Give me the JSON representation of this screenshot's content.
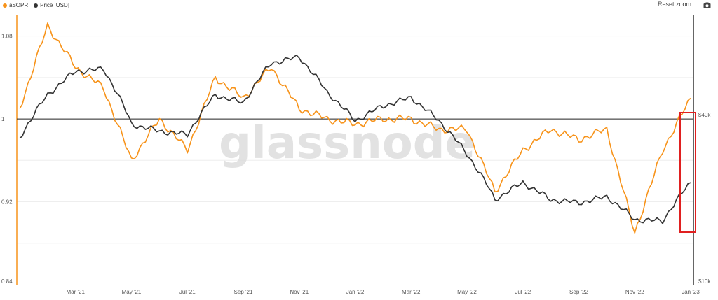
{
  "legend": [
    {
      "label": "aSOPR",
      "color": "#f7931a"
    },
    {
      "label": "Price [USD]",
      "color": "#333333"
    }
  ],
  "toolbar": {
    "reset_label": "Reset zoom",
    "camera_icon": "camera-icon"
  },
  "watermark": "glassnode",
  "chart_data": {
    "type": "line",
    "title": "",
    "xlabel": "",
    "x_ticks": [
      "Mar '21",
      "May '21",
      "Jul '21",
      "Sep '21",
      "Nov '21",
      "Jan '22",
      "Mar '22",
      "May '22",
      "Jul '22",
      "Sep '22",
      "Nov '22",
      "Jan '23"
    ],
    "x": [
      "Jan '21",
      "Feb '21",
      "Mar '21",
      "Apr '21",
      "May '21",
      "Jun '21",
      "Jul '21",
      "Aug '21",
      "Sep '21",
      "Oct '21",
      "Nov '21",
      "Dec '21",
      "Jan '22",
      "Feb '22",
      "Mar '22",
      "Apr '22",
      "May '22",
      "Jun '22",
      "Jul '22",
      "Aug '22",
      "Sep '22",
      "Oct '22",
      "Nov '22",
      "Dec '22",
      "Jan '23"
    ],
    "left_axis": {
      "ticks": [
        "1.08",
        "1",
        "0.92",
        "0.84"
      ],
      "ylim": [
        0.84,
        1.1
      ]
    },
    "right_axis": {
      "ticks": [
        "$40k",
        "$10k"
      ],
      "scale": "log"
    },
    "reference_line": {
      "axis": "left",
      "value": 1
    },
    "series": [
      {
        "name": "aSOPR",
        "axis": "left",
        "color": "#f7931a",
        "values": [
          1.01,
          1.09,
          1.05,
          1.03,
          0.96,
          1.0,
          0.97,
          1.04,
          1.02,
          1.05,
          1.01,
          1.0,
          0.995,
          1.0,
          1.0,
          0.99,
          0.99,
          0.93,
          0.97,
          0.99,
          0.98,
          0.99,
          0.89,
          0.97,
          1.02
        ]
      },
      {
        "name": "Price [USD]",
        "axis": "right",
        "color": "#333333",
        "values": [
          33000,
          47000,
          57000,
          58000,
          37000,
          35000,
          34000,
          47000,
          44000,
          61000,
          64000,
          48000,
          38000,
          43000,
          46000,
          38000,
          29000,
          20000,
          23000,
          20000,
          19500,
          20500,
          17000,
          16800,
          23000
        ]
      }
    ]
  }
}
